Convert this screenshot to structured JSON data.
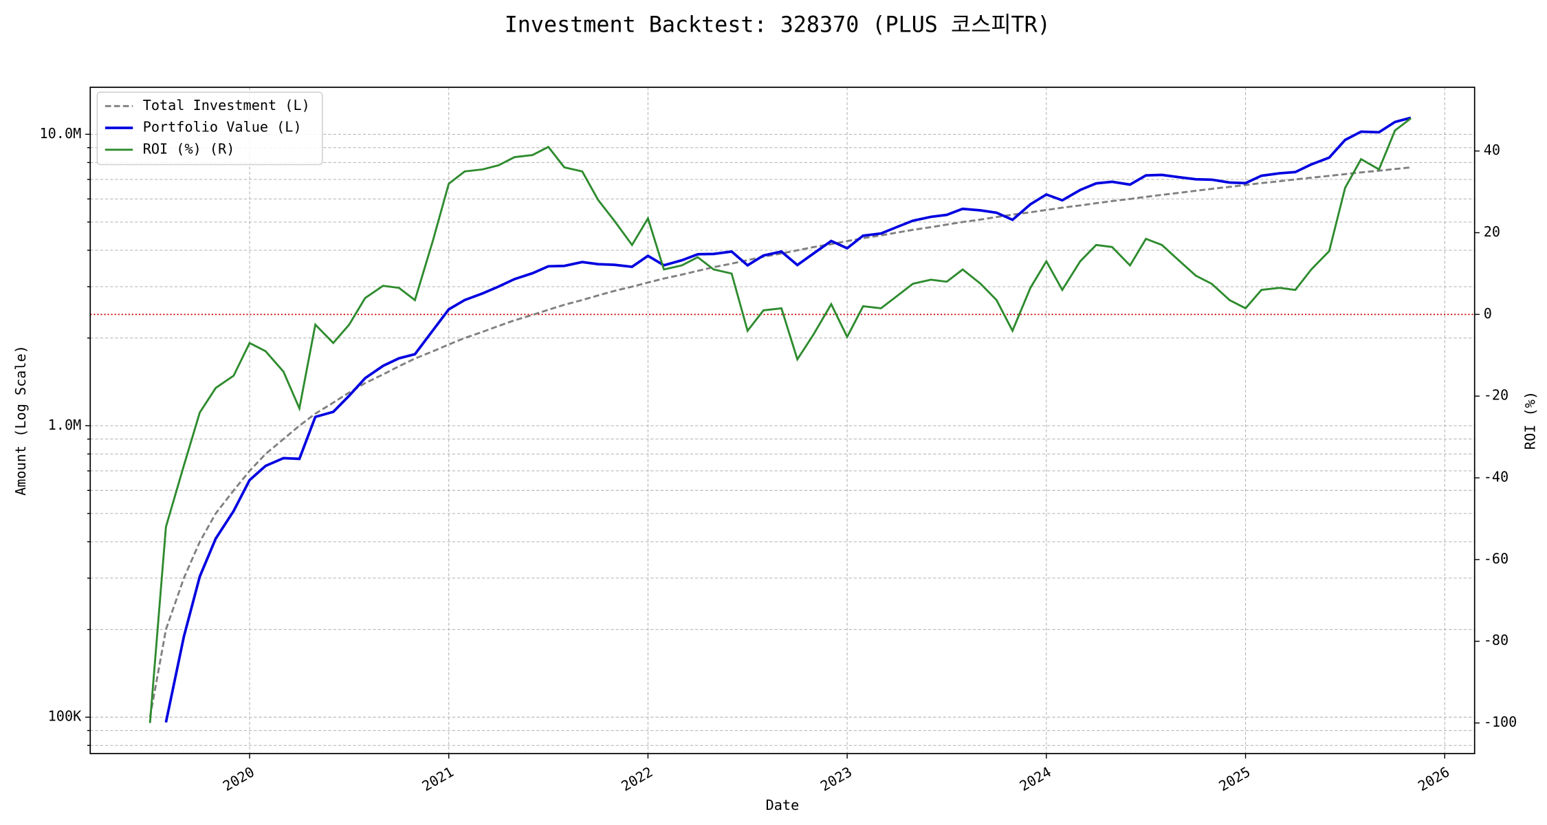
{
  "chart_data": {
    "type": "line",
    "title": "Investment Backtest: 328370 (PLUS 코스피TR)",
    "x_label": "Date",
    "y_label": "Amount (Log Scale)",
    "y2_label": "ROI (%)",
    "y_label_color": "#0000cc",
    "y2_label_color": "#228b22",
    "x": [
      2019.5,
      2019.58,
      2019.67,
      2019.75,
      2019.83,
      2019.92,
      2020,
      2020.08,
      2020.17,
      2020.25,
      2020.33,
      2020.42,
      2020.5,
      2020.58,
      2020.67,
      2020.75,
      2020.83,
      2020.92,
      2021,
      2021.08,
      2021.17,
      2021.25,
      2021.33,
      2021.42,
      2021.5,
      2021.58,
      2021.67,
      2021.75,
      2021.83,
      2021.92,
      2022,
      2022.08,
      2022.17,
      2022.25,
      2022.33,
      2022.42,
      2022.5,
      2022.58,
      2022.67,
      2022.75,
      2022.83,
      2022.92,
      2023,
      2023.08,
      2023.17,
      2023.25,
      2023.33,
      2023.42,
      2023.5,
      2023.58,
      2023.67,
      2023.75,
      2023.83,
      2023.92,
      2024,
      2024.08,
      2024.17,
      2024.25,
      2024.33,
      2024.42,
      2024.5,
      2024.58,
      2024.67,
      2024.75,
      2024.83,
      2024.92,
      2025,
      2025.08,
      2025.17,
      2025.25,
      2025.33,
      2025.42,
      2025.5,
      2025.58,
      2025.67,
      2025.75,
      2025.83
    ],
    "series": [
      {
        "name": "Total Investment (L)",
        "color": "#808080",
        "dashed": true,
        "width": 2,
        "axis": "y",
        "values": [
          100000,
          200000,
          300000,
          400000,
          500000,
          600000,
          700000,
          800000,
          900000,
          1000000,
          1100000,
          1200000,
          1300000,
          1400000,
          1500000,
          1600000,
          1700000,
          1800000,
          1900000,
          2000000,
          2100000,
          2200000,
          2300000,
          2400000,
          2500000,
          2600000,
          2700000,
          2800000,
          2900000,
          3000000,
          3100000,
          3200000,
          3300000,
          3400000,
          3500000,
          3600000,
          3700000,
          3800000,
          3900000,
          4000000,
          4100000,
          4200000,
          4300000,
          4400000,
          4500000,
          4600000,
          4700000,
          4800000,
          4900000,
          5000000,
          5100000,
          5200000,
          5300000,
          5400000,
          5500000,
          5600000,
          5700000,
          5800000,
          5900000,
          6000000,
          6100000,
          6200000,
          6300000,
          6400000,
          6500000,
          6600000,
          6700000,
          6800000,
          6900000,
          7000000,
          7100000,
          7200000,
          7300000,
          7400000,
          7500000,
          7600000,
          7700000
        ]
      },
      {
        "name": "Portfolio Value (L)",
        "color": "#0000e0",
        "dashed": false,
        "width": 2.6,
        "axis": "y",
        "values": [
          null,
          96000,
          189000,
          304000,
          410000,
          510000,
          651000,
          728000,
          774000,
          770000,
          1072500,
          1116000,
          1267500,
          1456000,
          1605000,
          1704000,
          1759500,
          2124000,
          2508000,
          2700000,
          2845500,
          3003000,
          3185500,
          3336000,
          3525000,
          3536000,
          3645000,
          3584000,
          3567000,
          3510000,
          3828500,
          3552000,
          3696000,
          3876000,
          3885000,
          3960000,
          3552000,
          3838000,
          3958500,
          3560000,
          3895000,
          4305000,
          4063500,
          4488000,
          4567500,
          4807000,
          5052500,
          5208000,
          5292000,
          5550000,
          5482500,
          5382000,
          5088000,
          5751000,
          6215000,
          5936000,
          6441000,
          6786000,
          6873500,
          6720000,
          7228500,
          7254000,
          7119000,
          7008000,
          6987500,
          6831000,
          6800500,
          7208000,
          7348500,
          7420000,
          7881000,
          8316000,
          9563000,
          10212000,
          10162500,
          11020000,
          11396000
        ]
      },
      {
        "name": "ROI (%) (R)",
        "color": "#2e8b2e",
        "dashed": false,
        "width": 2,
        "axis": "y2",
        "values": [
          -100,
          -52,
          -37,
          -24,
          -18,
          -15,
          -7,
          -9,
          -14,
          -23,
          -2.5,
          -7,
          -2.5,
          4,
          7,
          6.5,
          3.5,
          18,
          32,
          35,
          35.5,
          36.5,
          38.5,
          39,
          41,
          36,
          35,
          28,
          23,
          17,
          23.5,
          11,
          12,
          14,
          11,
          10,
          -4,
          1,
          1.5,
          -11,
          -5,
          2.5,
          -5.5,
          2,
          1.5,
          4.5,
          7.5,
          8.5,
          8,
          11,
          7.5,
          3.5,
          -4,
          6.5,
          13,
          6,
          13,
          17,
          16.5,
          12,
          18.5,
          17,
          13,
          9.5,
          7.5,
          3.5,
          1.5,
          6,
          6.5,
          6,
          11,
          15.5,
          31,
          38,
          35.5,
          45,
          48
        ]
      }
    ],
    "xlim": [
      2019.2,
      2026.15
    ],
    "xticks": [
      2020,
      2021,
      2022,
      2023,
      2024,
      2025,
      2026
    ],
    "ylim": [
      75000,
      14500000
    ],
    "y_log_scale": true,
    "yticks": [
      {
        "value": 100000,
        "label": "100K"
      },
      {
        "value": 1000000,
        "label": "1.0M"
      },
      {
        "value": 10000000,
        "label": "10.0M"
      }
    ],
    "yminorticks": [
      80000,
      90000,
      200000,
      300000,
      400000,
      500000,
      600000,
      700000,
      800000,
      900000,
      2000000,
      3000000,
      4000000,
      5000000,
      6000000,
      7000000,
      8000000,
      9000000
    ],
    "y2lim": [
      -107.5,
      55.6
    ],
    "y2ticks": [
      -100,
      -80,
      -60,
      -40,
      -20,
      0,
      20,
      40
    ],
    "hline": {
      "axis": "y2",
      "value": 0,
      "color": "#cc0000"
    },
    "grid": true,
    "legend": "upper-left"
  }
}
